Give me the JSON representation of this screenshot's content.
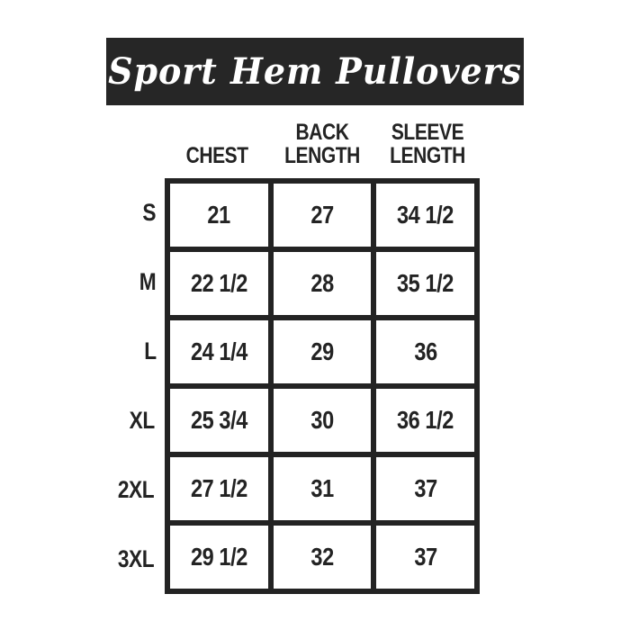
{
  "theme": {
    "ink": "#232323",
    "banner-bg": "#262626",
    "banner-text": "#ffffff",
    "paper": "#ffffff"
  },
  "banner": {
    "title": "Sport Hem Pullovers"
  },
  "chart_data": {
    "type": "table",
    "title": "Sport Hem Pullovers",
    "columns": [
      "CHEST",
      "BACK LENGTH",
      "SLEEVE LENGTH"
    ],
    "row_headers": [
      "S",
      "M",
      "L",
      "XL",
      "2XL",
      "3XL"
    ],
    "rows": [
      [
        "21",
        "27",
        "34 1/2"
      ],
      [
        "22 1/2",
        "28",
        "35 1/2"
      ],
      [
        "24 1/4",
        "29",
        "36"
      ],
      [
        "25 3/4",
        "30",
        "36 1/2"
      ],
      [
        "27 1/2",
        "31",
        "37"
      ],
      [
        "29 1/2",
        "32",
        "37"
      ]
    ]
  }
}
